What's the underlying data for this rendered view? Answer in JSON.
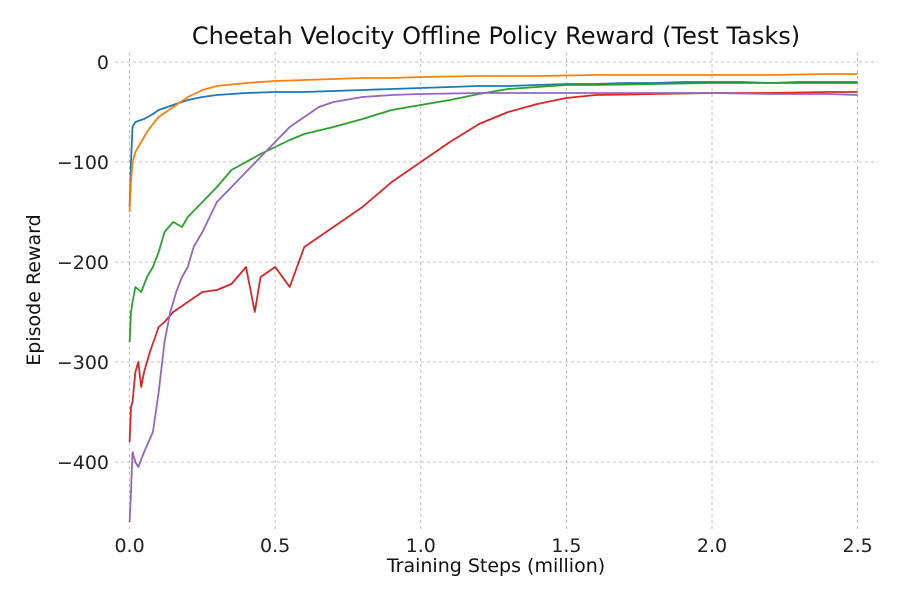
{
  "chart_data": {
    "type": "line",
    "title": "Cheetah Velocity Offline Policy Reward (Test Tasks)",
    "xlabel": "Training Steps (million)",
    "ylabel": "Episode Reward",
    "xlim": [
      -0.05,
      2.57
    ],
    "ylim": [
      -470,
      10
    ],
    "grid": true,
    "legend": "none",
    "xticks": [
      0.0,
      0.5,
      1.0,
      1.5,
      2.0,
      2.5
    ],
    "xtick_labels": [
      "0.0",
      "0.5",
      "1.0",
      "1.5",
      "2.0",
      "2.5"
    ],
    "yticks": [
      0,
      -100,
      -200,
      -300,
      -400
    ],
    "ytick_labels": [
      "0",
      "−100",
      "−200",
      "−300",
      "−400"
    ],
    "series": [
      {
        "name": "blue",
        "color": "#1f77b4",
        "x": [
          0,
          0.005,
          0.01,
          0.02,
          0.05,
          0.08,
          0.1,
          0.15,
          0.2,
          0.25,
          0.3,
          0.35,
          0.4,
          0.5,
          0.6,
          0.7,
          0.8,
          0.9,
          1.0,
          1.1,
          1.2,
          1.3,
          1.4,
          1.5,
          1.6,
          1.7,
          1.8,
          1.9,
          2.0,
          2.1,
          2.2,
          2.3,
          2.4,
          2.5
        ],
        "y": [
          -145,
          -100,
          -65,
          -60,
          -57,
          -52,
          -48,
          -43,
          -38,
          -35,
          -33,
          -32,
          -31,
          -30,
          -30,
          -29,
          -28,
          -27,
          -26,
          -25,
          -24,
          -24,
          -23,
          -22,
          -22,
          -21,
          -21,
          -20,
          -20,
          -20,
          -21,
          -20,
          -20,
          -20
        ]
      },
      {
        "name": "orange",
        "color": "#ff7f0e",
        "x": [
          0,
          0.005,
          0.01,
          0.02,
          0.04,
          0.06,
          0.08,
          0.1,
          0.15,
          0.2,
          0.25,
          0.3,
          0.4,
          0.5,
          0.6,
          0.7,
          0.8,
          0.9,
          1.0,
          1.2,
          1.4,
          1.6,
          1.8,
          2.0,
          2.2,
          2.4,
          2.5
        ],
        "y": [
          -150,
          -120,
          -100,
          -90,
          -80,
          -70,
          -62,
          -55,
          -45,
          -35,
          -28,
          -24,
          -21,
          -19,
          -18,
          -17,
          -16,
          -16,
          -15,
          -14,
          -14,
          -13,
          -13,
          -13,
          -13,
          -12,
          -12
        ]
      },
      {
        "name": "green",
        "color": "#2ca02c",
        "x": [
          0,
          0.005,
          0.01,
          0.02,
          0.04,
          0.06,
          0.08,
          0.1,
          0.12,
          0.15,
          0.18,
          0.2,
          0.25,
          0.3,
          0.35,
          0.4,
          0.45,
          0.5,
          0.55,
          0.6,
          0.7,
          0.8,
          0.9,
          1.0,
          1.1,
          1.2,
          1.3,
          1.4,
          1.5,
          1.6,
          1.8,
          2.0,
          2.2,
          2.4,
          2.5
        ],
        "y": [
          -280,
          -250,
          -240,
          -225,
          -230,
          -215,
          -205,
          -190,
          -170,
          -160,
          -165,
          -155,
          -140,
          -125,
          -108,
          -100,
          -92,
          -85,
          -78,
          -72,
          -65,
          -57,
          -48,
          -43,
          -38,
          -32,
          -27,
          -25,
          -23,
          -23,
          -22,
          -21,
          -21,
          -21,
          -21
        ]
      },
      {
        "name": "red",
        "color": "#d62728",
        "x": [
          0,
          0.005,
          0.01,
          0.02,
          0.03,
          0.04,
          0.05,
          0.07,
          0.1,
          0.12,
          0.15,
          0.2,
          0.25,
          0.3,
          0.35,
          0.4,
          0.43,
          0.45,
          0.5,
          0.55,
          0.6,
          0.65,
          0.7,
          0.8,
          0.9,
          1.0,
          1.1,
          1.2,
          1.3,
          1.4,
          1.5,
          1.6,
          1.8,
          2.0,
          2.2,
          2.4,
          2.5
        ],
        "y": [
          -380,
          -345,
          -340,
          -310,
          -300,
          -325,
          -310,
          -290,
          -265,
          -260,
          -250,
          -240,
          -230,
          -228,
          -222,
          -205,
          -250,
          -215,
          -205,
          -225,
          -185,
          -175,
          -165,
          -145,
          -120,
          -100,
          -80,
          -62,
          -50,
          -42,
          -36,
          -33,
          -32,
          -31,
          -31,
          -30,
          -30
        ]
      },
      {
        "name": "purple",
        "color": "#9467bd",
        "x": [
          0,
          0.005,
          0.01,
          0.02,
          0.03,
          0.05,
          0.08,
          0.1,
          0.12,
          0.14,
          0.16,
          0.18,
          0.2,
          0.22,
          0.25,
          0.3,
          0.35,
          0.4,
          0.45,
          0.5,
          0.55,
          0.6,
          0.65,
          0.7,
          0.8,
          0.9,
          1.0,
          1.2,
          1.4,
          1.6,
          1.8,
          2.0,
          2.2,
          2.4,
          2.5
        ],
        "y": [
          -460,
          -430,
          -390,
          -400,
          -405,
          -390,
          -370,
          -330,
          -280,
          -250,
          -230,
          -215,
          -205,
          -185,
          -170,
          -140,
          -125,
          -110,
          -95,
          -80,
          -65,
          -55,
          -45,
          -40,
          -35,
          -33,
          -32,
          -31,
          -31,
          -31,
          -31,
          -31,
          -32,
          -32,
          -33
        ]
      }
    ]
  }
}
